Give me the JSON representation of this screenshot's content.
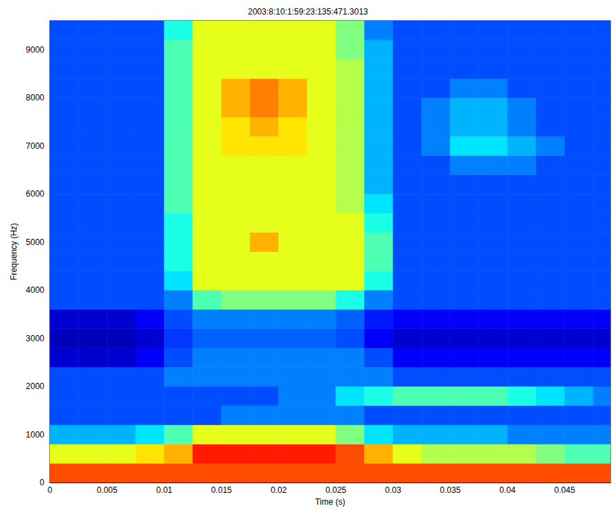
{
  "chart_data": {
    "type": "heatmap",
    "title": "2003:8:10:1:59:23:135:471.3013",
    "x_label": "Time (s)",
    "y_label": "Frequency (Hz)",
    "xlim": [
      0,
      0.049
    ],
    "ylim": [
      0,
      9600
    ],
    "xticks": [
      0,
      0.005,
      0.01,
      0.015,
      0.02,
      0.025,
      0.03,
      0.035,
      0.04,
      0.045
    ],
    "yticks": [
      0,
      1000,
      2000,
      3000,
      4000,
      5000,
      6000,
      7000,
      8000,
      9000
    ],
    "x_edges": [
      0,
      0.0025,
      0.005,
      0.0075,
      0.01,
      0.0125,
      0.015,
      0.0175,
      0.02,
      0.0225,
      0.025,
      0.0275,
      0.03,
      0.0325,
      0.035,
      0.0375,
      0.04,
      0.0425,
      0.045,
      0.0475,
      0.05
    ],
    "y_edges": [
      0,
      400,
      800,
      1200,
      1600,
      2000,
      2400,
      2800,
      3200,
      3600,
      4000,
      4400,
      4800,
      5200,
      5600,
      6000,
      6400,
      6800,
      7200,
      7600,
      8000,
      8400,
      8800,
      9200,
      9600
    ],
    "color_range": [
      0,
      10
    ],
    "cells": [
      [
        8,
        8,
        8,
        8,
        8,
        8,
        8,
        8,
        8,
        8,
        8,
        8,
        8,
        8,
        8,
        8,
        8,
        8,
        8,
        8
      ],
      [
        6,
        6,
        6,
        6.5,
        7,
        8.5,
        8.5,
        8.5,
        8.5,
        8.5,
        8,
        7,
        6,
        5.5,
        5.5,
        5.5,
        5.5,
        5,
        4.5,
        4.5
      ],
      [
        3,
        3,
        3,
        3.5,
        4.5,
        6,
        6,
        6,
        6,
        6,
        5,
        3.5,
        3,
        3,
        3,
        3,
        2.5,
        2.5,
        2.5,
        2.5
      ],
      [
        2,
        2,
        2,
        2,
        2,
        2,
        2.5,
        2.5,
        2.5,
        2.5,
        2.5,
        2,
        2,
        2,
        2,
        2,
        2,
        2,
        2,
        2
      ],
      [
        2,
        2,
        2,
        2,
        2,
        2,
        2,
        2,
        2.5,
        2.5,
        3.5,
        4,
        4.5,
        4.5,
        4.5,
        4.5,
        4,
        3.5,
        3,
        2.5
      ],
      [
        2,
        2,
        2,
        2,
        2.5,
        2.5,
        2.5,
        2.5,
        2.5,
        2.5,
        2.5,
        2.5,
        2,
        2,
        2,
        2,
        2,
        2,
        2,
        2
      ],
      [
        0.8,
        0.8,
        0.8,
        1.2,
        2,
        2.5,
        2.5,
        2.5,
        2.5,
        2.5,
        2.5,
        2,
        1.2,
        1.2,
        1.2,
        1.2,
        1.2,
        1.2,
        1.2,
        1.2
      ],
      [
        0.6,
        0.6,
        0.6,
        0.8,
        1.8,
        2.2,
        2.2,
        2.2,
        2.2,
        2.2,
        2,
        1.2,
        0.8,
        0.8,
        0.8,
        0.8,
        0.8,
        0.8,
        0.8,
        0.8
      ],
      [
        0.8,
        0.8,
        0.8,
        1.2,
        2,
        2.5,
        2.5,
        2.5,
        2.5,
        2.5,
        2.2,
        1.5,
        1.2,
        1.2,
        1.2,
        1.2,
        1.2,
        1.2,
        1.2,
        1.2
      ],
      [
        2,
        2,
        2,
        2,
        2.5,
        4.5,
        5,
        5,
        5,
        5,
        4,
        2.5,
        2,
        2,
        2,
        2,
        2,
        2,
        2,
        2
      ],
      [
        2,
        2,
        2,
        2,
        3.5,
        6,
        6,
        6,
        6,
        6,
        6,
        4,
        2,
        2,
        2,
        2,
        2,
        2,
        2,
        2
      ],
      [
        2,
        2,
        2,
        2,
        4,
        6,
        6,
        6,
        6,
        6,
        6,
        4.5,
        2,
        2,
        2,
        2,
        2,
        2,
        2,
        2
      ],
      [
        2,
        2,
        2,
        2,
        4,
        6,
        6,
        7,
        6,
        6,
        6,
        4.5,
        2,
        2,
        2,
        2,
        2,
        2,
        2,
        2
      ],
      [
        2,
        2,
        2,
        2,
        4,
        6,
        6,
        6,
        6,
        6,
        6,
        4,
        2,
        2,
        2,
        2,
        2,
        2,
        2,
        2
      ],
      [
        2,
        2,
        2,
        2,
        4.5,
        6,
        6,
        6,
        6,
        6,
        5.5,
        3.5,
        2,
        2,
        2,
        2,
        2,
        2,
        2,
        2
      ],
      [
        2,
        2,
        2,
        2,
        4.5,
        6,
        6,
        6,
        6,
        6,
        5.5,
        3,
        2,
        2,
        2,
        2,
        2,
        2,
        2,
        2
      ],
      [
        2,
        2,
        2,
        2,
        4.5,
        6,
        6,
        6,
        6,
        6,
        5.5,
        3,
        2,
        2,
        2.5,
        2.5,
        2.5,
        2,
        2,
        2
      ],
      [
        2,
        2,
        2,
        2,
        4.5,
        6,
        6.5,
        6.5,
        6.5,
        6,
        5.5,
        3,
        2,
        2.5,
        3.5,
        3.5,
        3,
        2.5,
        2,
        2
      ],
      [
        2,
        2,
        2,
        2,
        4.5,
        6,
        6.5,
        7,
        6.5,
        6,
        5.5,
        3,
        2,
        2.5,
        3,
        3,
        2.5,
        2,
        2,
        2
      ],
      [
        2,
        2,
        2,
        2,
        4.5,
        6,
        7,
        7.5,
        7,
        6,
        5.5,
        3,
        2,
        2.5,
        3,
        3,
        2.5,
        2,
        2,
        2
      ],
      [
        2,
        2,
        2,
        2,
        4.5,
        6,
        7,
        7.5,
        7,
        6,
        5.5,
        3,
        2,
        2,
        2.5,
        2.5,
        2,
        2,
        2,
        2
      ],
      [
        2,
        2,
        2,
        2,
        4.5,
        6,
        6,
        6,
        6,
        6,
        5.5,
        3,
        2,
        2,
        2,
        2,
        2,
        2,
        2,
        2
      ],
      [
        2,
        2,
        2,
        2,
        4.5,
        6,
        6,
        6,
        6,
        6,
        5,
        3,
        2,
        2,
        2,
        2,
        2,
        2,
        2,
        2
      ],
      [
        2,
        2,
        2,
        2,
        4,
        6,
        6,
        6,
        6,
        6,
        5,
        2.5,
        2,
        2,
        2,
        2,
        2,
        2,
        2,
        2
      ]
    ]
  }
}
